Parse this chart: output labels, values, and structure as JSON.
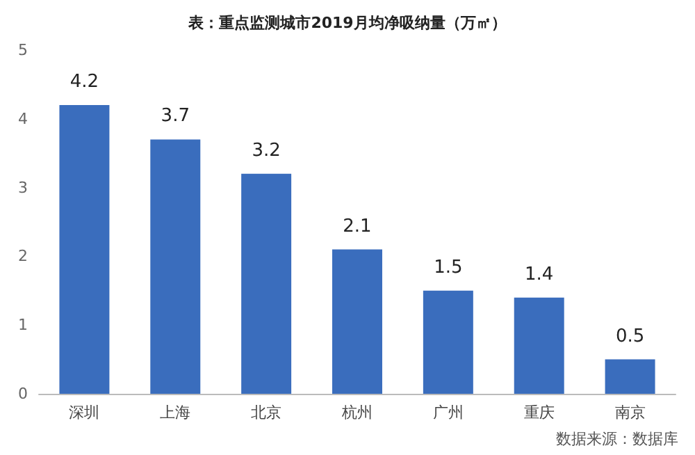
{
  "chart_data": {
    "type": "bar",
    "title": "表：重点监测城市2019月均净吸纳量（万㎡）",
    "categories": [
      "深圳",
      "上海",
      "北京",
      "杭州",
      "广州",
      "重庆",
      "南京"
    ],
    "values": [
      4.2,
      3.7,
      3.2,
      2.1,
      1.5,
      1.4,
      0.5
    ],
    "color": "#3a6dbd",
    "ylim": [
      0,
      5
    ],
    "yticks": [
      0,
      1,
      2,
      3,
      4,
      5
    ],
    "grid": false,
    "data_labels": true,
    "annotations": [
      "数据来源：数据库"
    ]
  }
}
